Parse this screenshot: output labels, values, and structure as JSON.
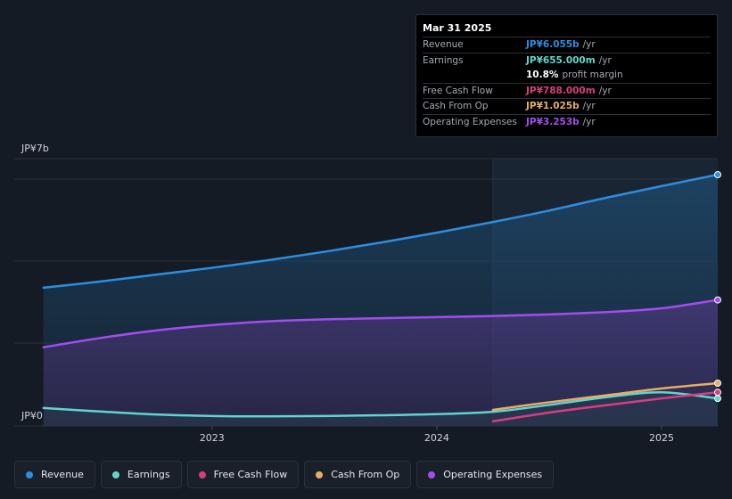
{
  "chart_data": {
    "type": "area",
    "x": [
      2022.25,
      2022.5,
      2022.75,
      2023.0,
      2023.25,
      2023.5,
      2023.75,
      2024.0,
      2024.25,
      2024.5,
      2024.75,
      2025.0,
      2025.25
    ],
    "ylim": [
      0,
      7
    ],
    "y_unit": "JP¥b",
    "y_tick_labels": [
      "JP¥7b",
      "JP¥0"
    ],
    "x_tick_labels": [
      {
        "label": "2023",
        "x": 2023.0
      },
      {
        "label": "2024",
        "x": 2024.0
      },
      {
        "label": "2025",
        "x": 2025.0
      }
    ],
    "highlight_start": 2024.25,
    "series": [
      {
        "name": "Revenue",
        "color": "#2c8ee0",
        "fill": true,
        "values": [
          3.62,
          3.78,
          3.96,
          4.14,
          4.34,
          4.56,
          4.8,
          5.06,
          5.34,
          5.64,
          5.97,
          6.28,
          6.58
        ]
      },
      {
        "name": "Operating Expenses",
        "color": "#a34df0",
        "fill": true,
        "values": [
          2.06,
          2.3,
          2.5,
          2.64,
          2.74,
          2.79,
          2.82,
          2.85,
          2.88,
          2.92,
          2.98,
          3.08,
          3.3
        ]
      },
      {
        "name": "Earnings",
        "color": "#5fd6cd",
        "fill": true,
        "values": [
          0.47,
          0.38,
          0.3,
          0.26,
          0.25,
          0.26,
          0.28,
          0.31,
          0.37,
          0.55,
          0.75,
          0.88,
          0.72
        ]
      },
      {
        "name": "Free Cash Flow",
        "color": "#d4407e",
        "fill": false,
        "x": [
          2024.25,
          2024.5,
          2024.75,
          2025.0,
          2025.25
        ],
        "values": [
          0.12,
          0.35,
          0.54,
          0.72,
          0.88
        ]
      },
      {
        "name": "Cash From Op",
        "color": "#e8ad62",
        "fill": false,
        "x": [
          2024.25,
          2024.5,
          2024.75,
          2025.0,
          2025.25
        ],
        "values": [
          0.42,
          0.62,
          0.8,
          0.98,
          1.12
        ]
      }
    ]
  },
  "tooltip": {
    "date": "Mar 31 2025",
    "rows": [
      {
        "label": "Revenue",
        "value": "JP¥6.055b",
        "unit": "/yr",
        "color": "#2c8ee0"
      },
      {
        "label": "Earnings",
        "value": "JP¥655.000m",
        "unit": "/yr",
        "color": "#5fd6cd"
      },
      {
        "label": "",
        "value": "10.8%",
        "unit": "profit margin",
        "color": "#ffffff"
      },
      {
        "label": "Free Cash Flow",
        "value": "JP¥788.000m",
        "unit": "/yr",
        "color": "#d4407e"
      },
      {
        "label": "Cash From Op",
        "value": "JP¥1.025b",
        "unit": "/yr",
        "color": "#e8ad62"
      },
      {
        "label": "Operating Expenses",
        "value": "JP¥3.253b",
        "unit": "/yr",
        "color": "#a34df0"
      }
    ]
  },
  "legend": [
    {
      "label": "Revenue",
      "color": "#2c8ee0"
    },
    {
      "label": "Earnings",
      "color": "#5fd6cd"
    },
    {
      "label": "Free Cash Flow",
      "color": "#d4407e"
    },
    {
      "label": "Cash From Op",
      "color": "#e8ad62"
    },
    {
      "label": "Operating Expenses",
      "color": "#a34df0"
    }
  ]
}
